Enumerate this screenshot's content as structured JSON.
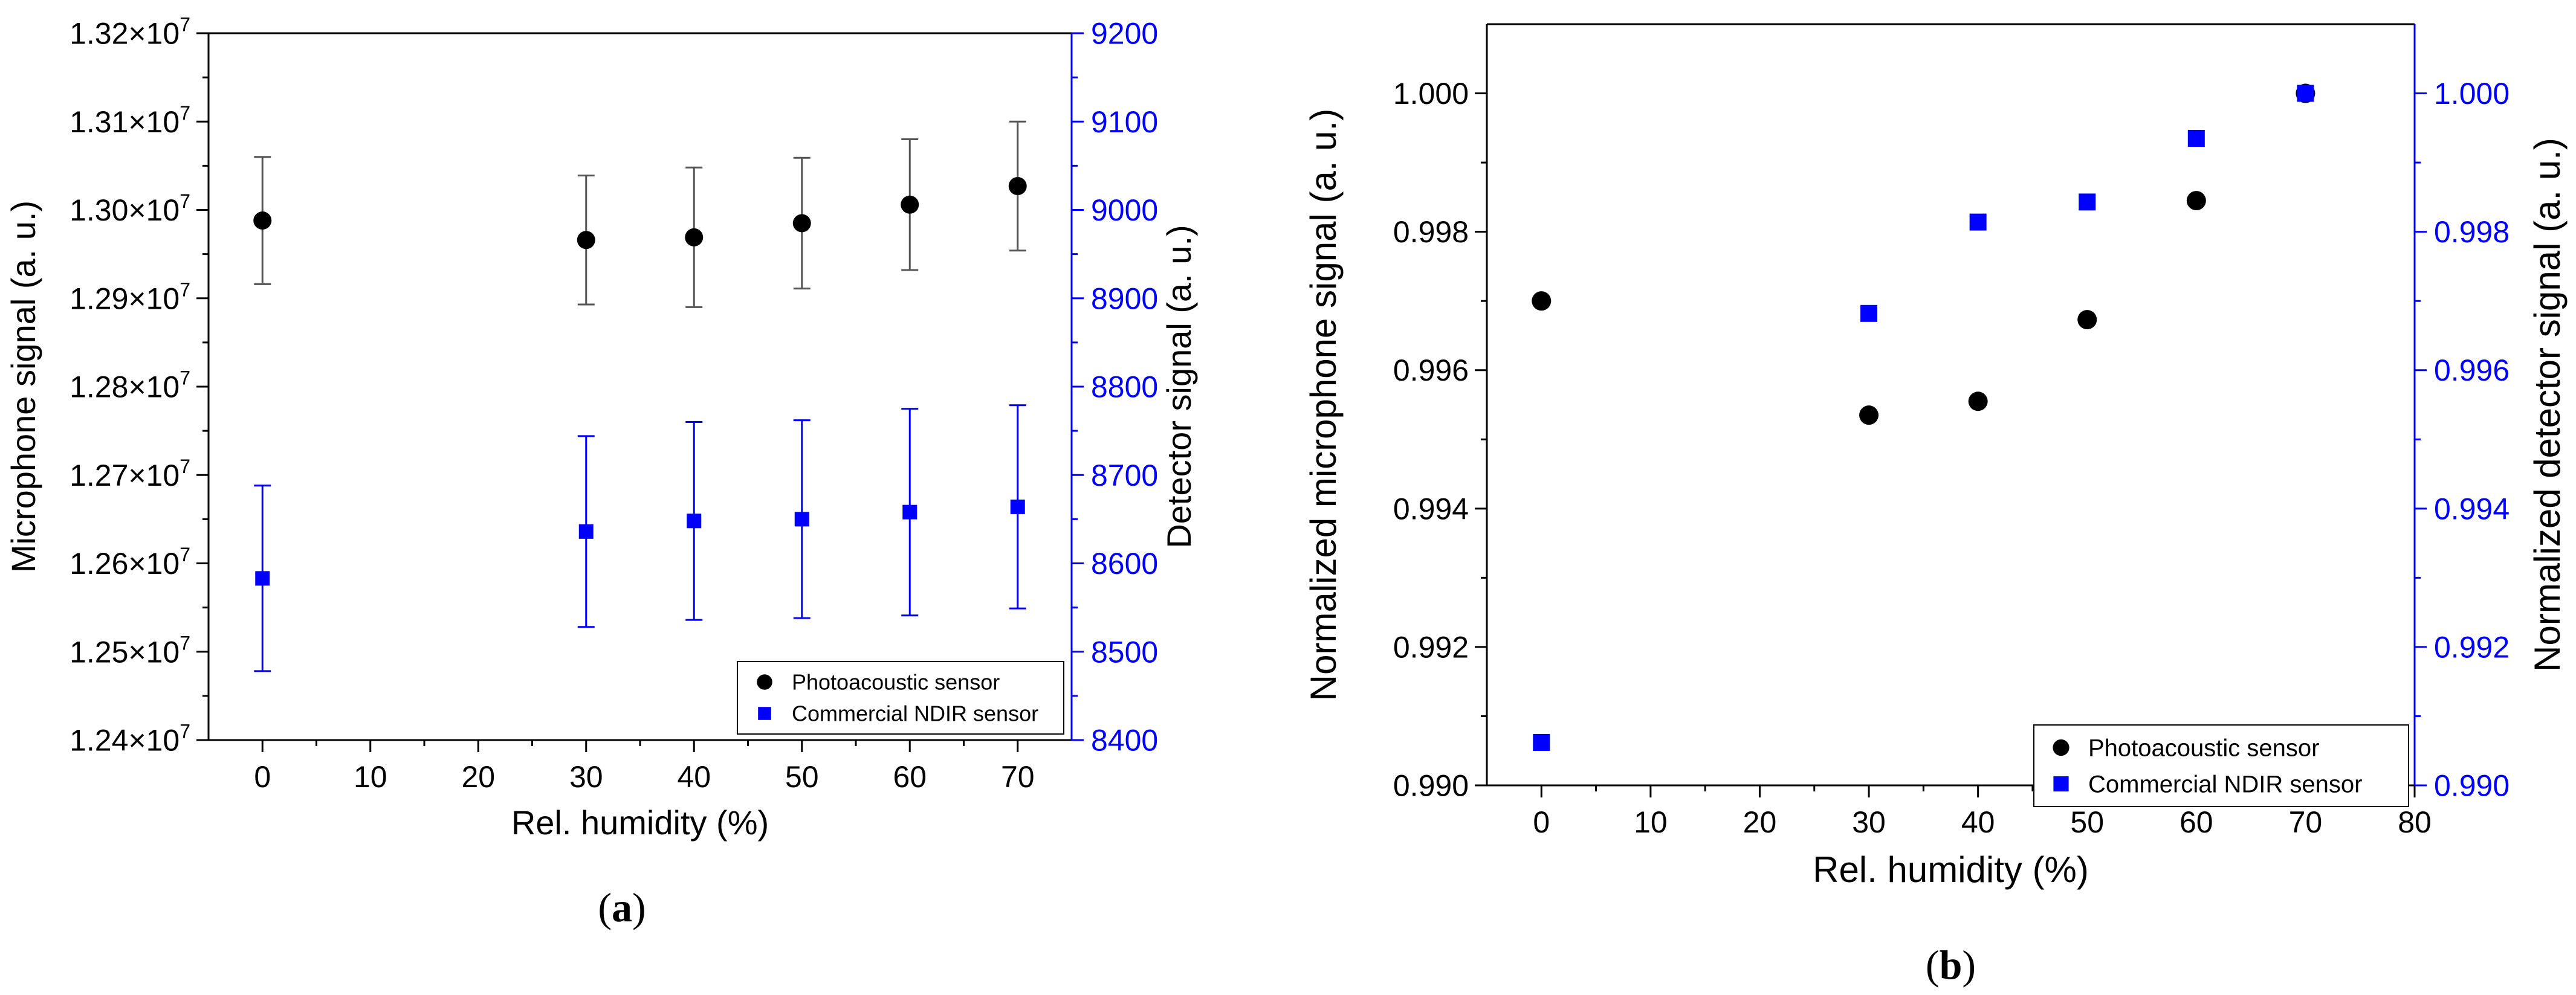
{
  "colors": {
    "black_series": "#000000",
    "blue_series": "#0000ff",
    "axis": "#000000",
    "blue_axis": "#0000ff",
    "error_bar": "#555555"
  },
  "chart_data": [
    {
      "type": "scatter",
      "panel": "a",
      "caption": "(a)",
      "xlabel": "Rel. humidity (%)",
      "ylabel_left": "Microphone signal (a. u.)",
      "ylabel_right": "Detector signal (a. u.)",
      "xlim": [
        -5,
        75
      ],
      "ylim_left": [
        12400000,
        13200000
      ],
      "ylim_right": [
        8400,
        9200
      ],
      "x_ticks": [
        0,
        10,
        20,
        30,
        40,
        50,
        60,
        70
      ],
      "x_tick_labels": [
        "0",
        "10",
        "20",
        "30",
        "40",
        "50",
        "60",
        "70"
      ],
      "y_left_ticks": [
        12400000,
        12500000,
        12600000,
        12700000,
        12800000,
        12900000,
        13000000,
        13100000,
        13200000
      ],
      "y_left_tick_labels": [
        {
          "m": "1.24×10",
          "e": "7"
        },
        {
          "m": "1.25×10",
          "e": "7"
        },
        {
          "m": "1.26×10",
          "e": "7"
        },
        {
          "m": "1.27×10",
          "e": "7"
        },
        {
          "m": "1.28×10",
          "e": "7"
        },
        {
          "m": "1.29×10",
          "e": "7"
        },
        {
          "m": "1.30×10",
          "e": "7"
        },
        {
          "m": "1.31×10",
          "e": "7"
        },
        {
          "m": "1.32×10",
          "e": "7"
        }
      ],
      "y_right_ticks": [
        8400,
        8500,
        8600,
        8700,
        8800,
        8900,
        9000,
        9100,
        9200
      ],
      "y_right_tick_labels": [
        "8400",
        "8500",
        "8600",
        "8700",
        "8800",
        "8900",
        "9000",
        "9100",
        "9200"
      ],
      "legend_position": "bottom-right",
      "series": [
        {
          "name": "Photoacoustic sensor",
          "axis": "left",
          "marker": "circle",
          "color": "#000000",
          "x": [
            0,
            30,
            40,
            50,
            60,
            70
          ],
          "y": [
            12988000,
            12966000,
            12969000,
            12985000,
            13006000,
            13027000
          ],
          "yerr": [
            72000,
            73000,
            79000,
            74000,
            74000,
            73000
          ]
        },
        {
          "name": "Commercial NDIR sensor",
          "axis": "right",
          "marker": "square",
          "color": "#0000ff",
          "x": [
            0,
            30,
            40,
            50,
            60,
            70
          ],
          "y": [
            8583,
            8636,
            8648,
            8650,
            8658,
            8664
          ],
          "yerr": [
            105,
            108,
            112,
            112,
            117,
            115
          ]
        }
      ]
    },
    {
      "type": "scatter",
      "panel": "b",
      "caption": "(b)",
      "xlabel": "Rel. humidity (%)",
      "ylabel_left": "Normalized microphone signal (a. u.)",
      "ylabel_right": "Normalized detector signal (a. u.)",
      "xlim": [
        -5,
        80
      ],
      "ylim_left": [
        0.99,
        1.001
      ],
      "ylim_right": [
        0.99,
        1.001
      ],
      "x_ticks": [
        0,
        10,
        20,
        30,
        40,
        50,
        60,
        70,
        80
      ],
      "x_tick_labels": [
        "0",
        "10",
        "20",
        "30",
        "40",
        "50",
        "60",
        "70",
        "80"
      ],
      "y_left_ticks": [
        0.99,
        0.992,
        0.994,
        0.996,
        0.998,
        1.0
      ],
      "y_left_tick_labels": [
        "0.990",
        "0.992",
        "0.994",
        "0.996",
        "0.998",
        "1.000"
      ],
      "y_right_ticks": [
        0.99,
        0.992,
        0.994,
        0.996,
        0.998,
        1.0
      ],
      "y_right_tick_labels": [
        "0.990",
        "0.992",
        "0.994",
        "0.996",
        "0.998",
        "1.000"
      ],
      "legend_position": "bottom-right",
      "series": [
        {
          "name": "Photoacoustic sensor",
          "axis": "left",
          "marker": "circle",
          "color": "#000000",
          "x": [
            0,
            30,
            40,
            50,
            60,
            70
          ],
          "y": [
            0.997,
            0.99535,
            0.99555,
            0.99673,
            0.99845,
            1.0
          ]
        },
        {
          "name": "Commercial NDIR sensor",
          "axis": "right",
          "marker": "square",
          "color": "#0000ff",
          "x": [
            0,
            30,
            40,
            50,
            60,
            70
          ],
          "y": [
            0.99062,
            0.99682,
            0.99814,
            0.99843,
            0.99935,
            1.0
          ]
        }
      ]
    }
  ]
}
